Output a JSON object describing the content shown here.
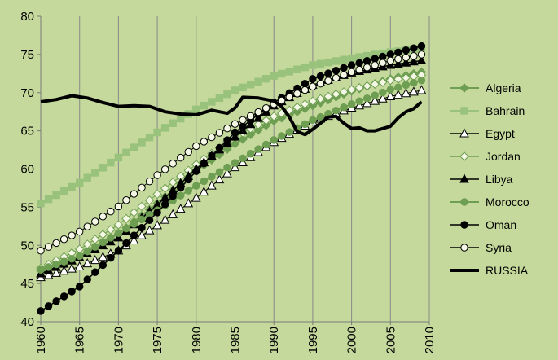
{
  "chart_data": {
    "type": "line",
    "title": "",
    "xlabel": "",
    "ylabel": "",
    "xlim": [
      1960,
      2010
    ],
    "ylim": [
      40,
      80
    ],
    "x_ticks": [
      "1960",
      "1965",
      "1970",
      "1975",
      "1980",
      "1985",
      "1990",
      "1995",
      "2000",
      "2005",
      "2010"
    ],
    "y_ticks": [
      "40",
      "45",
      "50",
      "55",
      "60",
      "65",
      "70",
      "75",
      "80"
    ],
    "grid": "vertical",
    "legend_position": "right",
    "series": [
      {
        "name": "Algeria",
        "marker": "diamond",
        "fill": "#6e9e52",
        "stroke": "#6e9e52",
        "line": "#6e9e52",
        "lw": 2,
        "points": [
          [
            1960,
            46.7
          ],
          [
            1965,
            48.5
          ],
          [
            1970,
            51.5
          ],
          [
            1975,
            55.5
          ],
          [
            1980,
            59.8
          ],
          [
            1985,
            63.3
          ],
          [
            1990,
            66.3
          ],
          [
            1995,
            68.3
          ],
          [
            2000,
            70.2
          ],
          [
            2005,
            71.8
          ],
          [
            2009,
            72.7
          ]
        ]
      },
      {
        "name": "Bahrain",
        "marker": "square",
        "fill": "#99c27c",
        "stroke": "#99c27c",
        "line": "#99c27c",
        "lw": 2,
        "points": [
          [
            1960,
            55.5
          ],
          [
            1965,
            58.2
          ],
          [
            1970,
            61.5
          ],
          [
            1975,
            64.8
          ],
          [
            1980,
            67.8
          ],
          [
            1985,
            70.3
          ],
          [
            1990,
            72.2
          ],
          [
            1995,
            73.6
          ],
          [
            2000,
            74.5
          ],
          [
            2005,
            75.3
          ],
          [
            2009,
            75.8
          ]
        ]
      },
      {
        "name": "Egypt",
        "marker": "triangle-open",
        "fill": "#ffffff",
        "stroke": "#000000",
        "line": "#000000",
        "lw": 1,
        "points": [
          [
            1960,
            45.8
          ],
          [
            1965,
            47.2
          ],
          [
            1970,
            49.3
          ],
          [
            1975,
            52.6
          ],
          [
            1980,
            56.2
          ],
          [
            1985,
            60.2
          ],
          [
            1990,
            63.5
          ],
          [
            1995,
            66.2
          ],
          [
            2000,
            68.0
          ],
          [
            2005,
            69.5
          ],
          [
            2009,
            70.3
          ]
        ]
      },
      {
        "name": "Jordan",
        "marker": "diamond-open",
        "fill": "#f4f7e4",
        "stroke": "#6e9e52",
        "line": "#6e9e52",
        "lw": 1,
        "points": [
          [
            1960,
            47.0
          ],
          [
            1965,
            49.5
          ],
          [
            1970,
            52.7
          ],
          [
            1975,
            56.7
          ],
          [
            1980,
            60.6
          ],
          [
            1985,
            64.2
          ],
          [
            1990,
            66.9
          ],
          [
            1995,
            68.9
          ],
          [
            2000,
            70.4
          ],
          [
            2005,
            71.6
          ],
          [
            2009,
            72.3
          ]
        ]
      },
      {
        "name": "Libya",
        "marker": "triangle",
        "fill": "#000000",
        "stroke": "#000000",
        "line": "#000000",
        "lw": 1.5,
        "points": [
          [
            1960,
            46.3
          ],
          [
            1965,
            48.4
          ],
          [
            1970,
            51.0
          ],
          [
            1975,
            55.3
          ],
          [
            1980,
            60.0
          ],
          [
            1985,
            64.2
          ],
          [
            1990,
            68.3
          ],
          [
            1995,
            71.0
          ],
          [
            2000,
            72.6
          ],
          [
            2005,
            73.6
          ],
          [
            2009,
            74.2
          ]
        ]
      },
      {
        "name": "Morocco",
        "marker": "circle",
        "fill": "#6e9e52",
        "stroke": "#6e9e52",
        "line": "#6e9e52",
        "lw": 2,
        "points": [
          [
            1960,
            46.8
          ],
          [
            1965,
            48.6
          ],
          [
            1970,
            51.6
          ],
          [
            1975,
            54.6
          ],
          [
            1980,
            57.8
          ],
          [
            1985,
            60.8
          ],
          [
            1990,
            63.8
          ],
          [
            1995,
            66.4
          ],
          [
            2000,
            68.5
          ],
          [
            2005,
            70.4
          ],
          [
            2009,
            71.6
          ]
        ]
      },
      {
        "name": "Oman",
        "marker": "circle",
        "fill": "#000000",
        "stroke": "#000000",
        "line": "#000000",
        "lw": 1.5,
        "points": [
          [
            1960,
            41.4
          ],
          [
            1965,
            44.6
          ],
          [
            1970,
            49.3
          ],
          [
            1975,
            54.3
          ],
          [
            1980,
            59.7
          ],
          [
            1985,
            64.8
          ],
          [
            1990,
            68.7
          ],
          [
            1995,
            71.8
          ],
          [
            2000,
            73.6
          ],
          [
            2005,
            75.0
          ],
          [
            2009,
            76.1
          ]
        ]
      },
      {
        "name": "Syria",
        "marker": "circle-open",
        "fill": "#f4f7e4",
        "stroke": "#000000",
        "line": "#000000",
        "lw": 1,
        "points": [
          [
            1960,
            49.3
          ],
          [
            1965,
            51.8
          ],
          [
            1970,
            55.1
          ],
          [
            1975,
            59.2
          ],
          [
            1980,
            63.0
          ],
          [
            1985,
            65.9
          ],
          [
            1990,
            68.5
          ],
          [
            1995,
            70.8
          ],
          [
            2000,
            72.7
          ],
          [
            2005,
            74.2
          ],
          [
            2009,
            75.0
          ]
        ]
      },
      {
        "name": "RUSSIA",
        "marker": "none",
        "fill": "#000000",
        "stroke": "#000000",
        "line": "#000000",
        "lw": 4,
        "points": [
          [
            1960,
            68.8
          ],
          [
            1962,
            69.1
          ],
          [
            1964,
            69.6
          ],
          [
            1966,
            69.3
          ],
          [
            1968,
            68.7
          ],
          [
            1970,
            68.2
          ],
          [
            1972,
            68.3
          ],
          [
            1974,
            68.2
          ],
          [
            1976,
            67.5
          ],
          [
            1978,
            67.2
          ],
          [
            1980,
            67.1
          ],
          [
            1982,
            67.7
          ],
          [
            1984,
            67.3
          ],
          [
            1985,
            68.0
          ],
          [
            1986,
            69.4
          ],
          [
            1988,
            69.3
          ],
          [
            1990,
            68.9
          ],
          [
            1991,
            68.2
          ],
          [
            1992,
            66.8
          ],
          [
            1993,
            64.9
          ],
          [
            1994,
            64.5
          ],
          [
            1995,
            65.2
          ],
          [
            1996,
            66.0
          ],
          [
            1997,
            66.8
          ],
          [
            1998,
            66.9
          ],
          [
            1999,
            66.0
          ],
          [
            2000,
            65.3
          ],
          [
            2001,
            65.4
          ],
          [
            2002,
            65.0
          ],
          [
            2003,
            65.0
          ],
          [
            2004,
            65.3
          ],
          [
            2005,
            65.6
          ],
          [
            2006,
            66.7
          ],
          [
            2007,
            67.5
          ],
          [
            2008,
            67.9
          ],
          [
            2009,
            68.8
          ]
        ]
      }
    ]
  }
}
